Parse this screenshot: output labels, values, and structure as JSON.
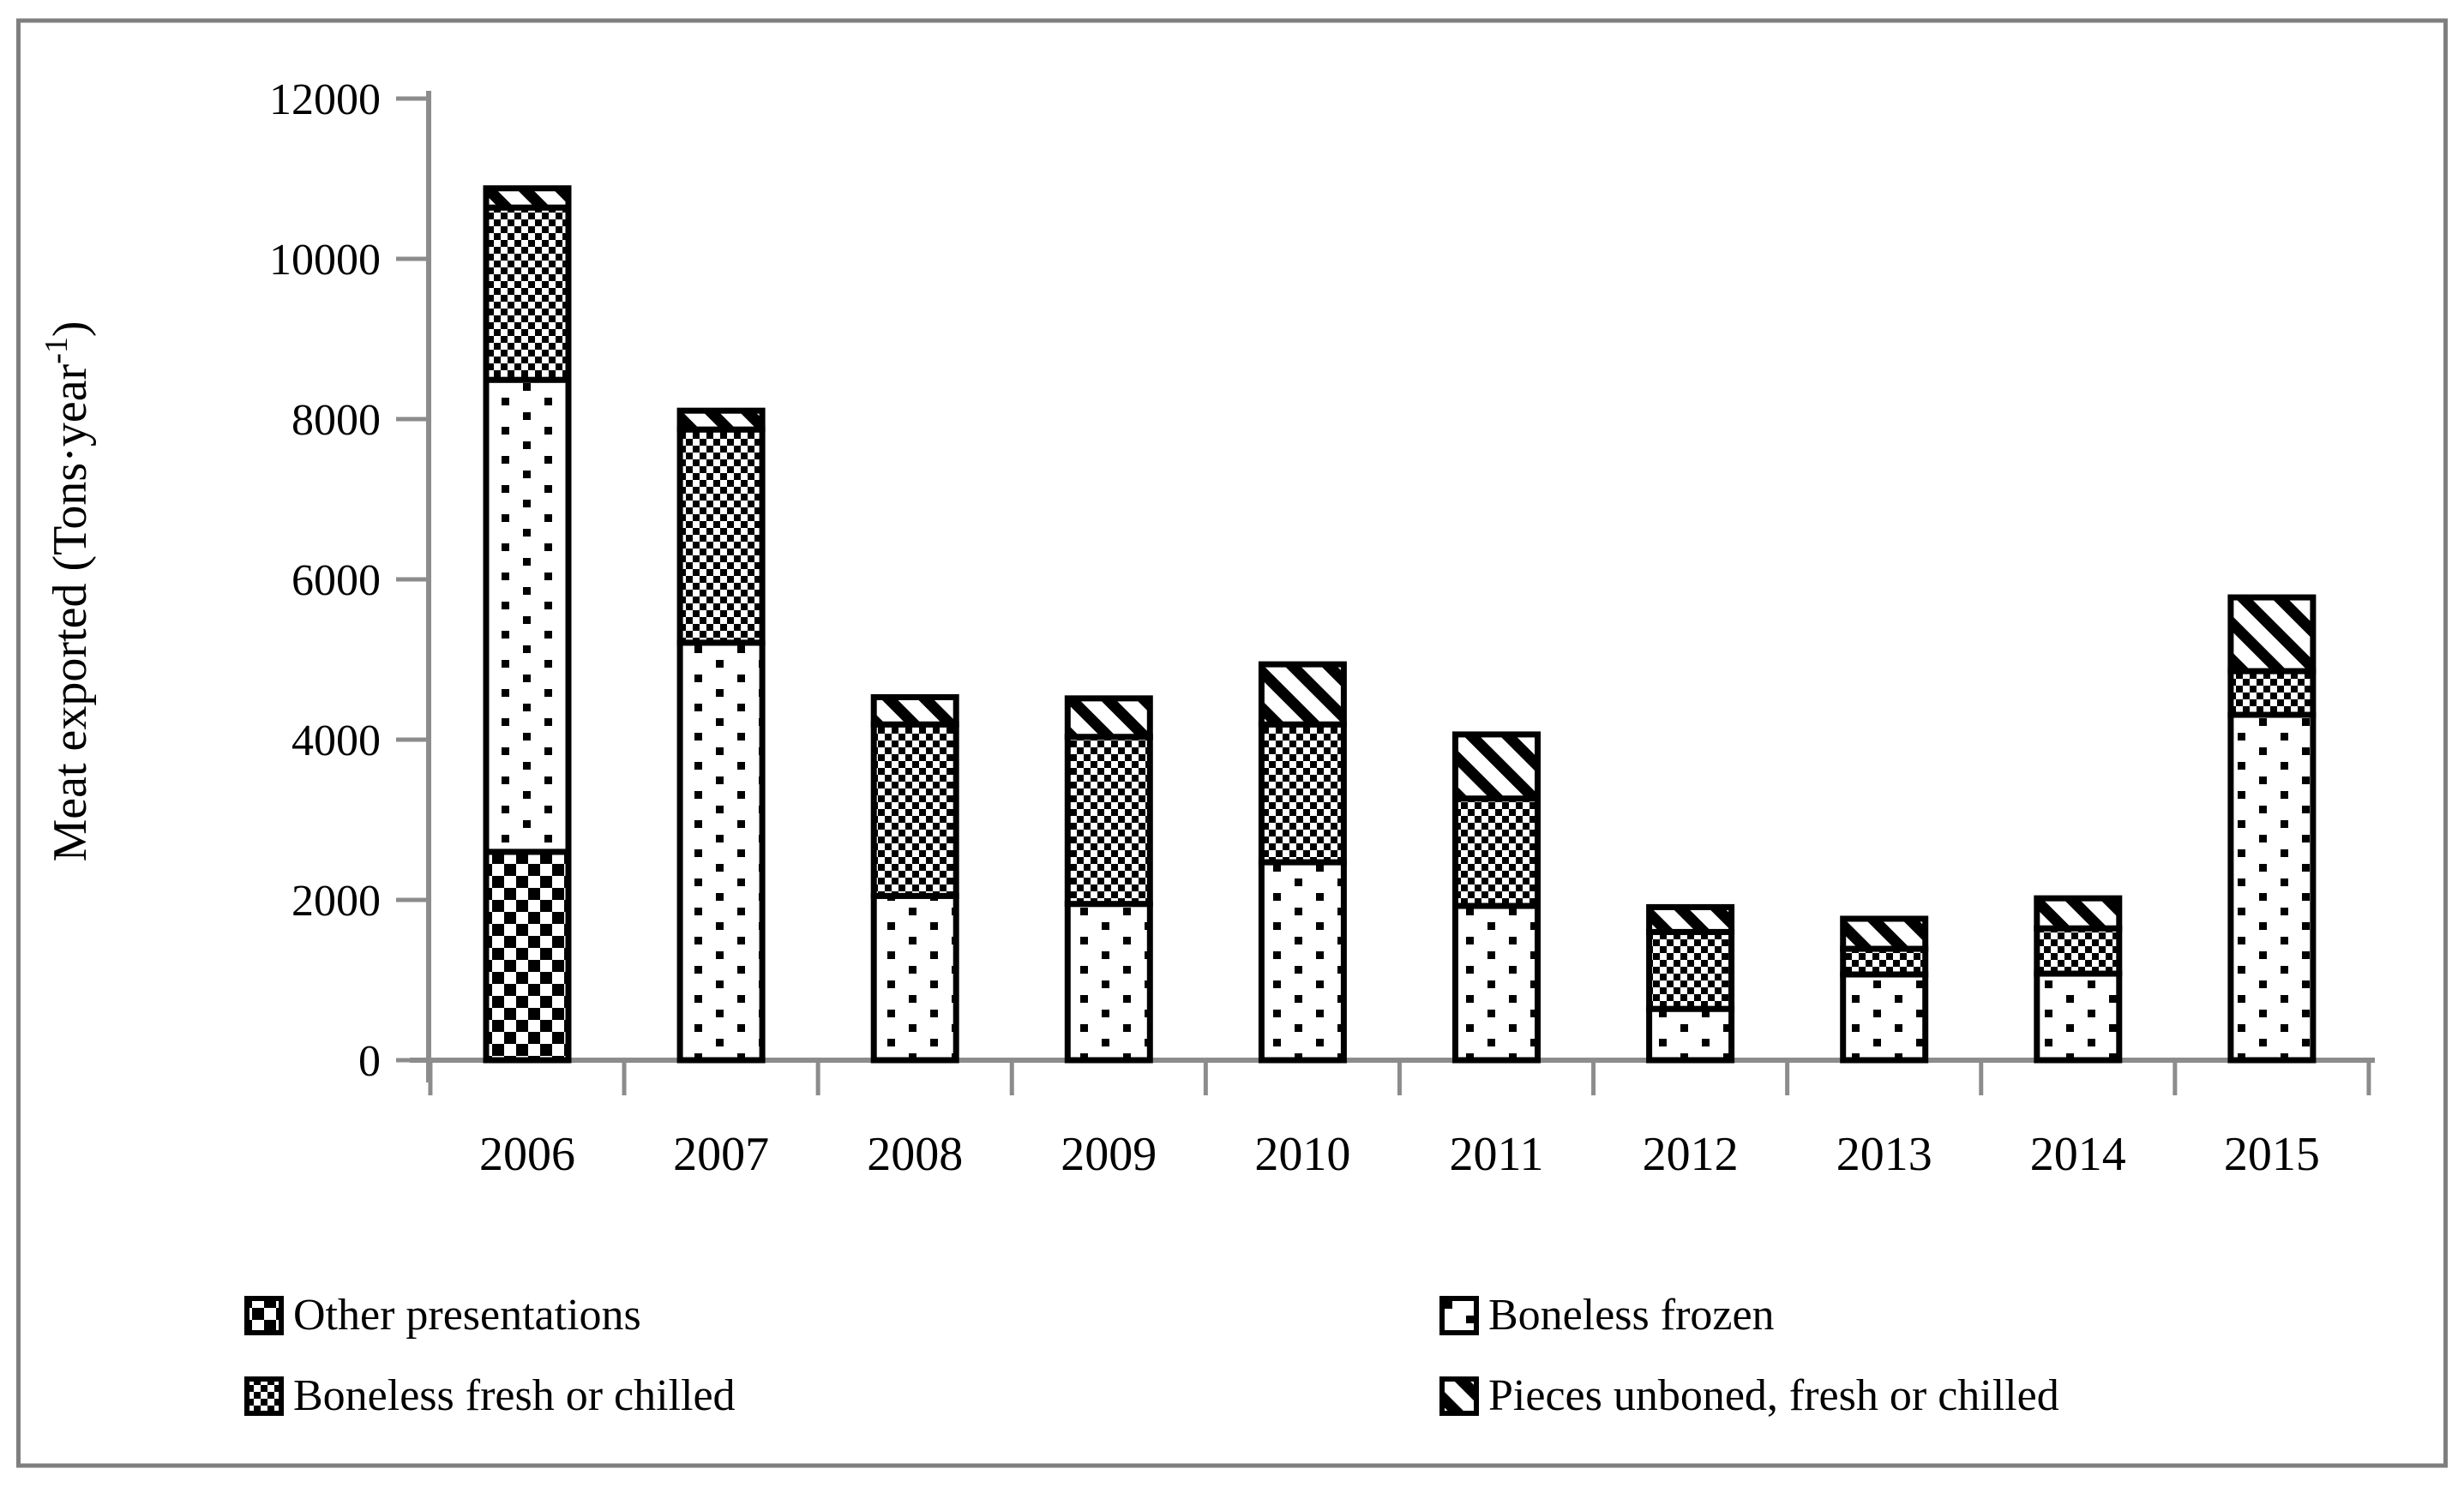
{
  "figure": {
    "background": "#ffffff",
    "border_color": "#7f7f7f",
    "axis_color": "#8c8c8c",
    "bar_outline_color": "#000000"
  },
  "axes": {
    "ylabel": "Meat exported (Tons·year⁻¹)",
    "ylabel_pre": "Meat exported (Tons·year",
    "ylabel_sup": "-1",
    "ylabel_post": ")",
    "ytick_labels": [
      "0",
      "2000",
      "4000",
      "6000",
      "8000",
      "10000",
      "12000"
    ],
    "xtick_labels": [
      "2006",
      "2007",
      "2008",
      "2009",
      "2010",
      "2011",
      "2012",
      "2013",
      "2014",
      "2015"
    ]
  },
  "legend": {
    "items": [
      {
        "key": "other",
        "label": "Other presentations"
      },
      {
        "key": "frozen",
        "label": "Boneless frozen"
      },
      {
        "key": "fresh",
        "label": "Boneless fresh or chilled"
      },
      {
        "key": "pieces",
        "label": "Pieces unboned, fresh or chilled"
      }
    ]
  },
  "chart_data": {
    "type": "bar",
    "stacked": true,
    "title": "",
    "xlabel": "",
    "ylabel": "Meat exported (Tons·year⁻¹)",
    "ylim": [
      0,
      12000
    ],
    "ytick_step": 2000,
    "yticks": [
      0,
      2000,
      4000,
      6000,
      8000,
      10000,
      12000
    ],
    "grid": false,
    "legend_position": "bottom-two-columns",
    "categories": [
      "2006",
      "2007",
      "2008",
      "2009",
      "2010",
      "2011",
      "2012",
      "2013",
      "2014",
      "2015"
    ],
    "series": [
      {
        "name": "Other presentations",
        "key": "other",
        "pattern": "coarse-checkerboard",
        "values": [
          2600,
          0,
          0,
          0,
          0,
          0,
          0,
          0,
          0,
          0
        ]
      },
      {
        "name": "Boneless frozen",
        "key": "frozen",
        "pattern": "square-dots",
        "values": [
          5890,
          5210,
          2050,
          1950,
          2470,
          1925,
          640,
          1070,
          1080,
          4310
        ]
      },
      {
        "name": "Boneless fresh or chilled",
        "key": "fresh",
        "pattern": "fine-checkerboard",
        "values": [
          2150,
          2660,
          2140,
          2085,
          1720,
          1340,
          960,
          320,
          565,
          545
        ]
      },
      {
        "name": "Pieces unboned, fresh or chilled",
        "key": "pieces",
        "pattern": "diagonal-stripes",
        "values": [
          240,
          235,
          340,
          480,
          750,
          800,
          310,
          375,
          375,
          920
        ]
      }
    ],
    "totals": [
      10880,
      8105,
      4530,
      4515,
      4940,
      4065,
      1910,
      1765,
      2020,
      5775
    ]
  }
}
